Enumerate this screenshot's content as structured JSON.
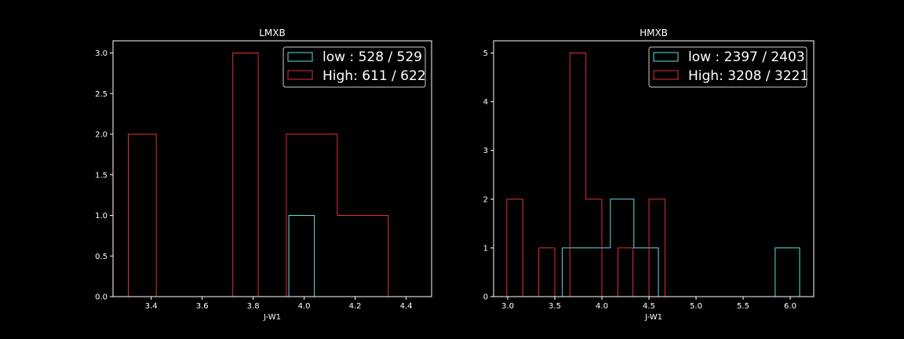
{
  "chart_data": [
    {
      "type": "histogram",
      "title": "LMXB",
      "xlabel": "J-W1",
      "ylabel": "",
      "xlim": [
        3.25,
        4.5
      ],
      "ylim": [
        0,
        3.15
      ],
      "xticks": [
        "3.4",
        "3.6",
        "3.8",
        "4.0",
        "4.2",
        "4.4"
      ],
      "yticks": [
        "0.0",
        "0.5",
        "1.0",
        "1.5",
        "2.0",
        "2.5",
        "3.0"
      ],
      "legend_position": "upper right",
      "series": [
        {
          "name": "low : 528 / 529",
          "color": "#5ee0e6",
          "bins": [
            {
              "x0": 3.94,
              "x1": 4.04,
              "count": 1
            }
          ]
        },
        {
          "name": "High: 611 / 622",
          "color": "#e0303a",
          "bins": [
            {
              "x0": 3.31,
              "x1": 3.42,
              "count": 2
            },
            {
              "x0": 3.42,
              "x1": 3.72,
              "count": 0
            },
            {
              "x0": 3.72,
              "x1": 3.82,
              "count": 3
            },
            {
              "x0": 3.82,
              "x1": 3.93,
              "count": 0
            },
            {
              "x0": 3.93,
              "x1": 4.13,
              "count": 2
            },
            {
              "x0": 4.13,
              "x1": 4.33,
              "count": 1
            }
          ]
        }
      ]
    },
    {
      "type": "histogram",
      "title": "HMXB",
      "xlabel": "J-W1",
      "ylabel": "",
      "xlim": [
        2.85,
        6.25
      ],
      "ylim": [
        0,
        5.25
      ],
      "xticks": [
        "3.0",
        "3.5",
        "4.0",
        "4.5",
        "5.0",
        "5.5",
        "6.0"
      ],
      "yticks": [
        "0",
        "1",
        "2",
        "3",
        "4",
        "5"
      ],
      "legend_position": "upper right",
      "series": [
        {
          "name": "low : 2397 / 2403",
          "color": "#5ee0e6",
          "bins": [
            {
              "x0": 3.58,
              "x1": 4.09,
              "count": 1
            },
            {
              "x0": 4.09,
              "x1": 4.34,
              "count": 2
            },
            {
              "x0": 4.34,
              "x1": 4.6,
              "count": 1
            },
            {
              "x0": 4.6,
              "x1": 5.84,
              "count": 0
            },
            {
              "x0": 5.84,
              "x1": 6.1,
              "count": 1
            }
          ]
        },
        {
          "name": "High: 3208 / 3221",
          "color": "#e0303a",
          "bins": [
            {
              "x0": 2.99,
              "x1": 3.16,
              "count": 2
            },
            {
              "x0": 3.16,
              "x1": 3.33,
              "count": 0
            },
            {
              "x0": 3.33,
              "x1": 3.5,
              "count": 1
            },
            {
              "x0": 3.5,
              "x1": 3.66,
              "count": 0
            },
            {
              "x0": 3.66,
              "x1": 3.83,
              "count": 5
            },
            {
              "x0": 3.83,
              "x1": 4.0,
              "count": 2
            },
            {
              "x0": 4.0,
              "x1": 4.17,
              "count": 0
            },
            {
              "x0": 4.17,
              "x1": 4.33,
              "count": 1
            },
            {
              "x0": 4.33,
              "x1": 4.5,
              "count": 0
            },
            {
              "x0": 4.5,
              "x1": 4.67,
              "count": 2
            }
          ]
        }
      ]
    }
  ]
}
